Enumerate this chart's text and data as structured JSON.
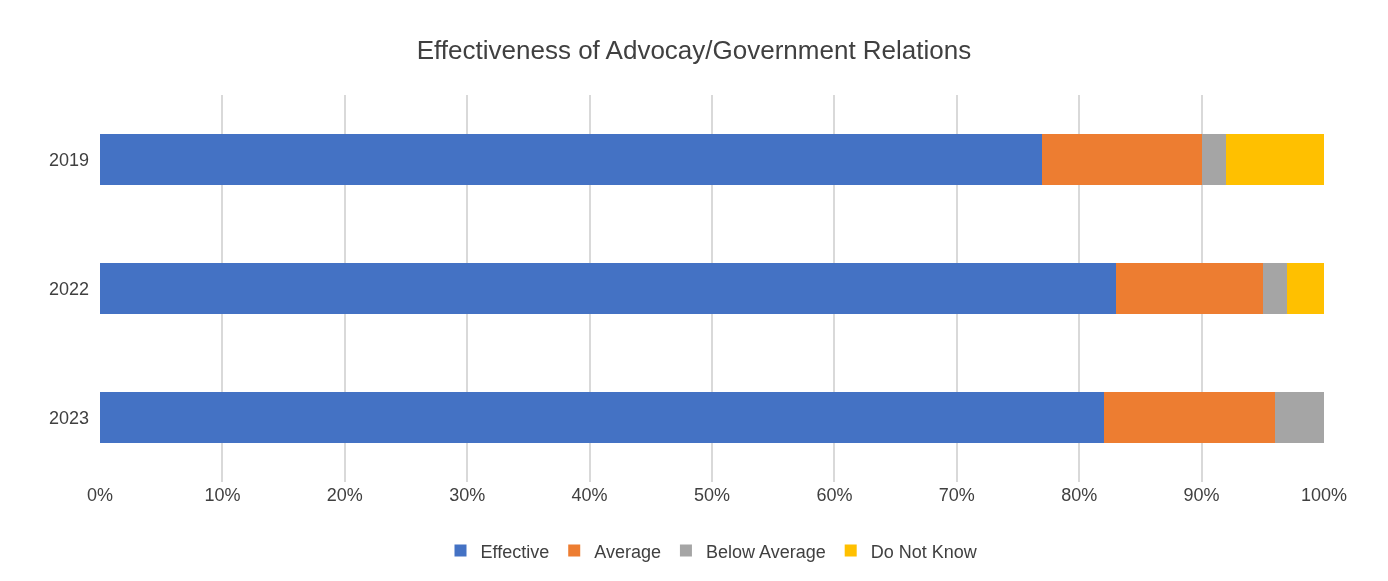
{
  "chart_data": {
    "type": "bar",
    "orientation": "horizontal",
    "stacked": true,
    "title": "Effectiveness of Advocay/Government Relations",
    "categories": [
      "2019",
      "2022",
      "2023"
    ],
    "series": [
      {
        "name": "Effective",
        "color": "#4472c4",
        "values": [
          77,
          83,
          82
        ]
      },
      {
        "name": "Average",
        "color": "#ed7d31",
        "values": [
          13,
          12,
          14
        ]
      },
      {
        "name": "Below Average",
        "color": "#a5a5a5",
        "values": [
          2,
          2,
          4
        ]
      },
      {
        "name": "Do Not Know",
        "color": "#ffc000",
        "values": [
          8,
          3,
          0
        ]
      }
    ],
    "xlim": [
      0,
      100
    ],
    "xticks": [
      {
        "value": 0,
        "label": "0%"
      },
      {
        "value": 10,
        "label": "10%"
      },
      {
        "value": 20,
        "label": "20%"
      },
      {
        "value": 30,
        "label": "30%"
      },
      {
        "value": 40,
        "label": "40%"
      },
      {
        "value": 50,
        "label": "50%"
      },
      {
        "value": 60,
        "label": "60%"
      },
      {
        "value": 70,
        "label": "70%"
      },
      {
        "value": 80,
        "label": "80%"
      },
      {
        "value": 90,
        "label": "90%"
      },
      {
        "value": 100,
        "label": "100%"
      }
    ],
    "grid": "x",
    "legend": "bottom"
  }
}
